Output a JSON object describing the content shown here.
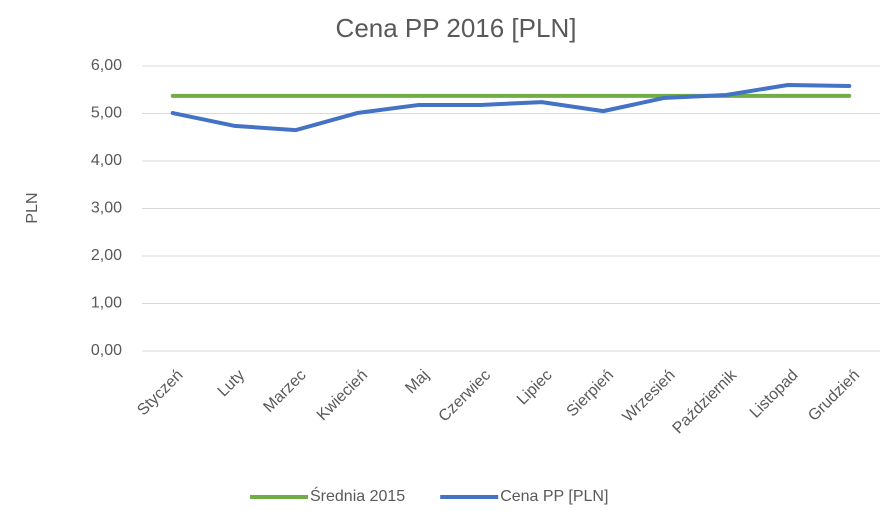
{
  "chart_data": {
    "type": "line",
    "title": "Cena PP 2016 [PLN]",
    "y_label": "PLN",
    "categories": [
      "Styczeń",
      "Luty",
      "Marzec",
      "Kwiecień",
      "Maj",
      "Czerwiec",
      "Lipiec",
      "Sierpień",
      "Wrzesień",
      "Październik",
      "Listopad",
      "Grudzień"
    ],
    "series": [
      {
        "name": "Średnia 2015",
        "color": "#70ad47",
        "values": [
          5.37,
          5.37,
          5.37,
          5.37,
          5.37,
          5.37,
          5.37,
          5.37,
          5.37,
          5.37,
          5.37,
          5.37
        ]
      },
      {
        "name": "Cena PP [PLN]",
        "color": "#4472c4",
        "values": [
          5.01,
          4.74,
          4.65,
          5.01,
          5.18,
          5.18,
          5.24,
          5.05,
          5.33,
          5.39,
          5.6,
          5.58
        ]
      }
    ],
    "ylim": [
      0,
      6
    ],
    "yticks": [
      {
        "value": 0,
        "label": "0,00"
      },
      {
        "value": 1,
        "label": "1,00"
      },
      {
        "value": 2,
        "label": "2,00"
      },
      {
        "value": 3,
        "label": "3,00"
      },
      {
        "value": 4,
        "label": "4,00"
      },
      {
        "value": 5,
        "label": "5,00"
      },
      {
        "value": 6,
        "label": "6,00"
      }
    ],
    "grid": true,
    "legend": "bottom"
  }
}
